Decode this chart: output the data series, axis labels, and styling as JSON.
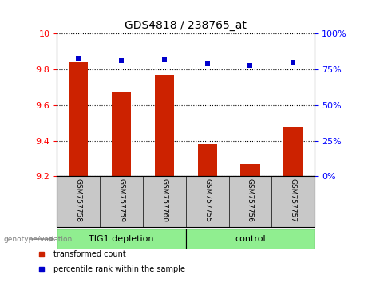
{
  "title": "GDS4818 / 238765_at",
  "samples": [
    "GSM757758",
    "GSM757759",
    "GSM757760",
    "GSM757755",
    "GSM757756",
    "GSM757757"
  ],
  "bar_values": [
    9.84,
    9.67,
    9.77,
    9.38,
    9.27,
    9.48
  ],
  "dot_values": [
    83,
    81,
    82,
    79,
    78,
    80
  ],
  "ylim_left": [
    9.2,
    10.0
  ],
  "ylim_right": [
    0,
    100
  ],
  "yticks_left": [
    9.2,
    9.4,
    9.6,
    9.8,
    10.0
  ],
  "yticks_right": [
    0,
    25,
    50,
    75,
    100
  ],
  "bar_color": "#cc2200",
  "dot_color": "#0000cc",
  "bar_bottom": 9.2,
  "groups": [
    {
      "label": "TIG1 depletion",
      "indices": [
        0,
        1,
        2
      ],
      "color": "#90ee90"
    },
    {
      "label": "control",
      "indices": [
        3,
        4,
        5
      ],
      "color": "#90ee90"
    }
  ],
  "group_label_prefix": "genotype/variation",
  "legend_items": [
    {
      "label": "transformed count",
      "color": "#cc2200"
    },
    {
      "label": "percentile rank within the sample",
      "color": "#0000cc"
    }
  ],
  "grid_color": "black",
  "background_color": "#ffffff",
  "label_area_color": "#c8c8c8"
}
